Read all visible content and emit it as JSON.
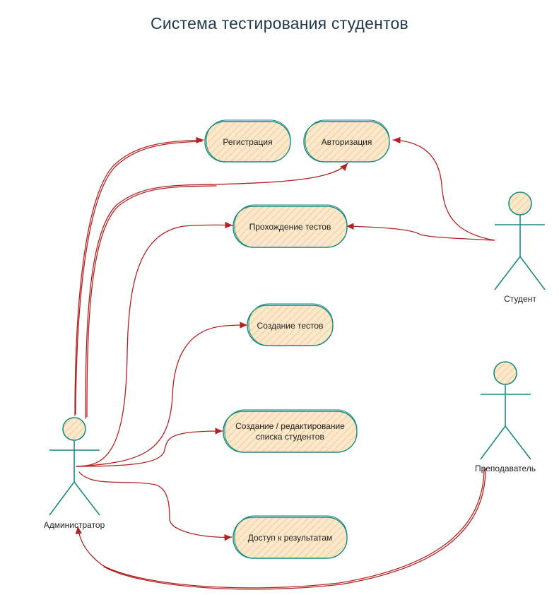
{
  "diagram": {
    "title": "Система тестирования студентов",
    "use_cases": {
      "registration": "Регистрация",
      "authorization": "Авторизация",
      "taking_tests": "Прохождение тестов",
      "creating_tests": "Создание тестов",
      "student_list_line1": "Создание / редактирование",
      "student_list_line2": "списка студентов",
      "results_access": "Доступ к результатам"
    },
    "actors": {
      "student": "Студент",
      "teacher": "Преподаватель",
      "admin": "Администратор"
    },
    "colors": {
      "outline": "#1a8a80",
      "fill": "#fbe9cc",
      "hatch": "#f3cfa0",
      "arrow": "#b22222",
      "title": "#1f3a4a"
    }
  }
}
